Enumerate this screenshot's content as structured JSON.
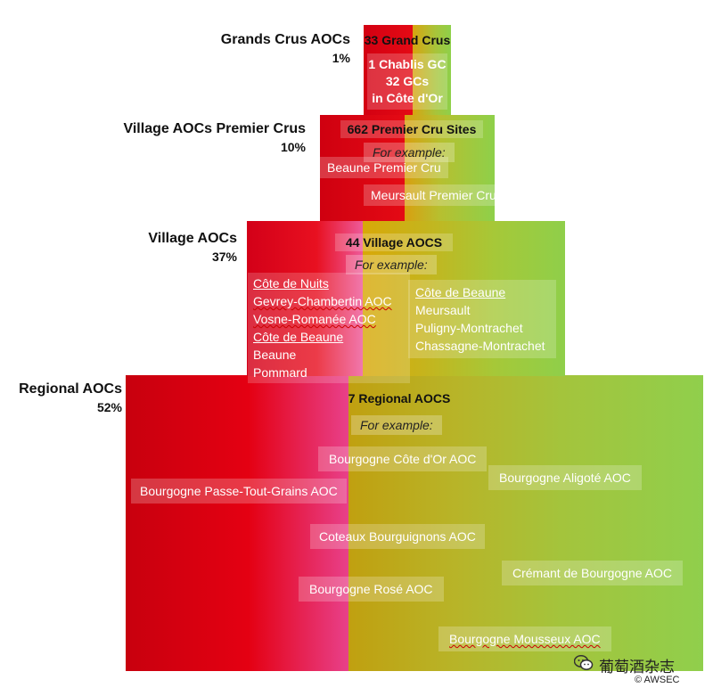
{
  "tiers": {
    "grand": {
      "title": "Grands Crus AOCs",
      "pct": "1%",
      "heading": "33 Grand Crus",
      "lines": [
        "1 Chablis GC",
        "32 GCs",
        "in Côte d'Or"
      ]
    },
    "premier": {
      "title": "Village AOCs Premier Crus",
      "pct": "10%",
      "heading": "662 Premier Cru Sites",
      "for_example": "For example:",
      "examples": [
        "Beaune Premier Cru",
        "Meursault Premier Cru"
      ]
    },
    "village": {
      "title": "Village AOCs",
      "pct": "37%",
      "heading": "44 Village AOCS",
      "for_example": "For example:",
      "left_group": {
        "h1": "Côte de Nuits",
        "l1": "Gevrey-Chambertin AOC",
        "l2": "Vosne-Romanée AOC",
        "h2": "Côte de Beaune",
        "l3": "Beaune",
        "l4": "Pommard"
      },
      "right_group": {
        "h1": "Côte de Beaune",
        "l1": "Meursault",
        "l2": "Puligny-Montrachet",
        "l3": "Chassagne-Montrachet"
      }
    },
    "regional": {
      "title": "Regional AOCs",
      "pct": "52%",
      "heading": "7 Regional AOCS",
      "for_example": "For example:",
      "examples": [
        "Bourgogne Côte d'Or AOC",
        "Bourgogne Aligoté AOC",
        "Bourgogne Passe-Tout-Grains AOC",
        "Coteaux Bourguignons AOC",
        "Crémant de Bourgogne AOC",
        "Bourgogne Rosé AOC",
        "Bourgogne Mousseux AOC"
      ]
    }
  },
  "watermark": {
    "name": "葡萄酒杂志",
    "copyright": "© AWSEC"
  },
  "colors": {
    "red": "#e40012",
    "green": "#8fd04a",
    "pink": "#e8408a",
    "gold": "#c8a020"
  }
}
